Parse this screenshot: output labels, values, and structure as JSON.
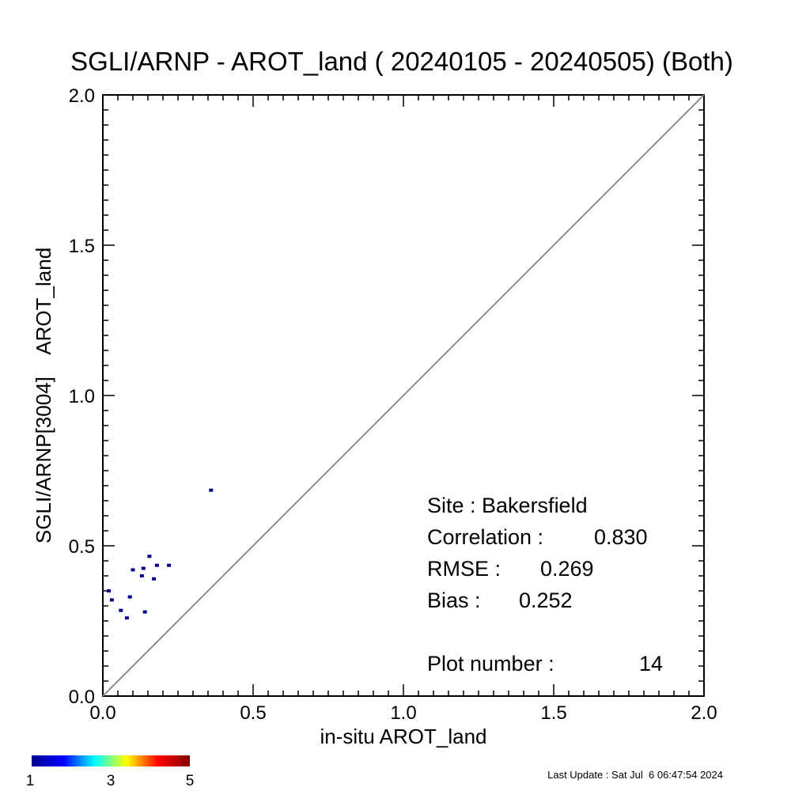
{
  "chart_data": {
    "type": "scatter",
    "title": "SGLI/ARNP - AROT_land ( 20240105 - 20240505) (Both)",
    "xlabel": "in-situ AROT_land",
    "ylabel": "SGLI/ARNP[3004]    AROT_land",
    "xlim": [
      0,
      2
    ],
    "ylim": [
      0,
      2
    ],
    "x_ticks": [
      "0.0",
      "0.5",
      "1.0",
      "1.5",
      "2.0"
    ],
    "y_ticks": [
      "0.0",
      "0.5",
      "1.0",
      "1.5",
      "2.0"
    ],
    "one_to_one_line": true,
    "grid": false,
    "points": [
      {
        "x": 0.02,
        "y": 0.35
      },
      {
        "x": 0.03,
        "y": 0.32
      },
      {
        "x": 0.06,
        "y": 0.285
      },
      {
        "x": 0.08,
        "y": 0.26
      },
      {
        "x": 0.09,
        "y": 0.33
      },
      {
        "x": 0.1,
        "y": 0.42
      },
      {
        "x": 0.13,
        "y": 0.4
      },
      {
        "x": 0.135,
        "y": 0.425
      },
      {
        "x": 0.14,
        "y": 0.28
      },
      {
        "x": 0.155,
        "y": 0.465
      },
      {
        "x": 0.17,
        "y": 0.39
      },
      {
        "x": 0.18,
        "y": 0.435
      },
      {
        "x": 0.22,
        "y": 0.435
      },
      {
        "x": 0.36,
        "y": 0.685
      }
    ],
    "point_color": "#00008f",
    "stats": {
      "site_label": "Site : Bakersfield",
      "correlation_label": "Correlation :",
      "correlation_value": "0.830",
      "rmse_label": "RMSE :",
      "rmse_value": "0.269",
      "bias_label": "Bias :",
      "bias_value": "0.252",
      "plot_number_label": "Plot number :",
      "plot_number_value": "14"
    },
    "colorbar": {
      "colors": [
        "#00008f",
        "#0000ff",
        "#00ffff",
        "#ffff00",
        "#ff0000",
        "#800000"
      ],
      "labels": [
        "1",
        "3",
        "5"
      ]
    }
  },
  "footer": {
    "last_update": "Last Update : Sat Jul  6 06:47:54 2024"
  }
}
